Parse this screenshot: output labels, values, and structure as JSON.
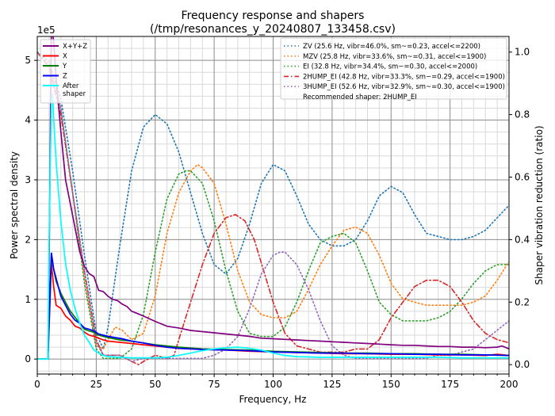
{
  "chart_data": {
    "type": "line",
    "title": "Frequency response and shapers",
    "subtitle": "(/tmp/resonances_y_20240807_133458.csv)",
    "xlabel": "Frequency, Hz",
    "ylabel": "Power spectral density",
    "y2label": "Shaper vibration reduction (ratio)",
    "y_offset_label": "1e5",
    "xlim": [
      0,
      200
    ],
    "ylim": [
      -0.25,
      5.4
    ],
    "y2lim": [
      -0.03,
      1.05
    ],
    "xticks": [
      "0",
      "25",
      "50",
      "75",
      "100",
      "125",
      "150",
      "175",
      "200"
    ],
    "yticks": [
      "0",
      "1",
      "2",
      "3",
      "4",
      "5"
    ],
    "y2ticks": [
      "0.0",
      "0.2",
      "0.4",
      "0.6",
      "0.8",
      "1.0"
    ],
    "grid": true,
    "legend_left": {
      "placement": "top-left",
      "entries": [
        "X+Y+Z",
        "X",
        "Y",
        "Z",
        "After\nshaper"
      ]
    },
    "legend_right": {
      "placement": "top-right",
      "entries": [
        "ZV (25.6 Hz, vibr=46.0%, sm~=0.23, accel<=2200)",
        "MZV (25.8 Hz, vibr=33.6%, sm~=0.31, accel<=1900)",
        "EI (32.8 Hz, vibr=34.4%, sm~=0.30, accel<=2000)",
        "2HUMP_EI (42.8 Hz, vibr=33.3%, sm~=0.29, accel<=1900)",
        "3HUMP_EI (52.6 Hz, vibr=32.9%, sm~=0.30, accel<=1900)"
      ],
      "note": "Recommended shaper: 2HUMP_EI"
    },
    "psd_series": [
      {
        "name": "X+Y+Z",
        "color": "#800080",
        "x": [
          0,
          4.5,
          5,
          6,
          7,
          8,
          10,
          12,
          14,
          16,
          18,
          20,
          22,
          24,
          26,
          28,
          30,
          32,
          34,
          36,
          38,
          40,
          42,
          45,
          50,
          55,
          60,
          65,
          70,
          75,
          80,
          85,
          90,
          95,
          100,
          105,
          110,
          115,
          120,
          125,
          130,
          135,
          140,
          145,
          150,
          155,
          160,
          165,
          170,
          175,
          180,
          185,
          190,
          195,
          197,
          200
        ],
        "y": [
          0,
          0,
          1.5,
          5.6,
          5.3,
          4.7,
          3.8,
          3.0,
          2.6,
          2.2,
          1.8,
          1.55,
          1.43,
          1.38,
          1.15,
          1.13,
          1.05,
          1.0,
          0.98,
          0.92,
          0.88,
          0.8,
          0.77,
          0.72,
          0.63,
          0.55,
          0.52,
          0.48,
          0.46,
          0.44,
          0.42,
          0.4,
          0.38,
          0.35,
          0.34,
          0.33,
          0.32,
          0.31,
          0.3,
          0.29,
          0.28,
          0.27,
          0.26,
          0.25,
          0.24,
          0.23,
          0.23,
          0.22,
          0.21,
          0.21,
          0.2,
          0.2,
          0.19,
          0.2,
          0.22,
          0.17
        ]
      },
      {
        "name": "X",
        "color": "#ff0000",
        "x": [
          0,
          4.5,
          5,
          6,
          7,
          8,
          10,
          12,
          14,
          16,
          18,
          20,
          22,
          24,
          26,
          28,
          30,
          35,
          40,
          45,
          50,
          60,
          70,
          80,
          90,
          100,
          110,
          120,
          130,
          140,
          150,
          160,
          170,
          180,
          190,
          195,
          200
        ],
        "y": [
          0,
          0,
          0.5,
          1.6,
          1.2,
          0.9,
          0.85,
          0.72,
          0.65,
          0.55,
          0.52,
          0.45,
          0.4,
          0.38,
          0.35,
          0.32,
          0.3,
          0.28,
          0.26,
          0.24,
          0.22,
          0.18,
          0.16,
          0.15,
          0.13,
          0.12,
          0.11,
          0.1,
          0.09,
          0.09,
          0.08,
          0.08,
          0.07,
          0.07,
          0.06,
          0.08,
          0.06
        ]
      },
      {
        "name": "Y",
        "color": "#008000",
        "x": [
          0,
          4.5,
          5,
          6,
          7,
          8,
          10,
          12,
          14,
          16,
          18,
          20,
          22,
          24,
          26,
          28,
          30,
          35,
          40,
          45,
          50,
          60,
          70,
          80,
          90,
          100,
          110,
          120,
          130,
          140,
          150,
          160,
          170,
          180,
          190,
          200
        ],
        "y": [
          0,
          0,
          0.6,
          1.7,
          1.5,
          1.3,
          1.1,
          0.95,
          0.8,
          0.7,
          0.6,
          0.5,
          0.47,
          0.45,
          0.4,
          0.38,
          0.36,
          0.32,
          0.3,
          0.27,
          0.24,
          0.2,
          0.17,
          0.16,
          0.15,
          0.13,
          0.12,
          0.11,
          0.1,
          0.1,
          0.09,
          0.09,
          0.08,
          0.08,
          0.07,
          0.06
        ]
      },
      {
        "name": "Z",
        "color": "#0000ff",
        "x": [
          0,
          4.5,
          5,
          6,
          7,
          8,
          10,
          12,
          14,
          16,
          18,
          20,
          22,
          24,
          26,
          28,
          30,
          33,
          36,
          40,
          45,
          50,
          55,
          60,
          70,
          80,
          90,
          100,
          110,
          120,
          130,
          140,
          150,
          160,
          170,
          180,
          190,
          200
        ],
        "y": [
          0,
          0,
          0.7,
          1.78,
          1.5,
          1.35,
          1.05,
          0.9,
          0.75,
          0.65,
          0.6,
          0.52,
          0.5,
          0.47,
          0.42,
          0.4,
          0.38,
          0.36,
          0.34,
          0.3,
          0.27,
          0.23,
          0.2,
          0.18,
          0.16,
          0.15,
          0.14,
          0.12,
          0.11,
          0.1,
          0.1,
          0.09,
          0.09,
          0.08,
          0.08,
          0.07,
          0.07,
          0.06
        ]
      },
      {
        "name": "After shaper",
        "color": "#00ffff",
        "x": [
          0,
          4.5,
          5,
          6,
          6.5,
          7,
          8,
          10,
          12,
          14,
          16,
          18,
          20,
          22,
          24,
          26,
          28,
          30,
          35,
          40,
          45,
          50,
          55,
          60,
          65,
          70,
          75,
          80,
          85,
          90,
          95,
          100,
          105,
          110,
          120,
          130,
          140,
          150,
          160,
          170,
          180,
          190,
          200
        ],
        "y": [
          0,
          0,
          2.0,
          4.3,
          4.45,
          4.0,
          3.3,
          2.3,
          1.6,
          1.15,
          0.85,
          0.6,
          0.4,
          0.28,
          0.15,
          0.1,
          0.06,
          0.04,
          0.03,
          0.02,
          0.02,
          0.02,
          0.03,
          0.06,
          0.1,
          0.14,
          0.17,
          0.19,
          0.2,
          0.18,
          0.15,
          0.1,
          0.06,
          0.04,
          0.03,
          0.03,
          0.03,
          0.03,
          0.03,
          0.03,
          0.02,
          0.02,
          0.02
        ]
      }
    ],
    "shaper_series": [
      {
        "name": "ZV",
        "color": "#1f77b4",
        "style": "dotted",
        "x": [
          0,
          5,
          10,
          15,
          20,
          25,
          28,
          30,
          35,
          40,
          45,
          50,
          55,
          60,
          65,
          70,
          75,
          80,
          85,
          90,
          95,
          100,
          105,
          110,
          115,
          120,
          125,
          130,
          135,
          140,
          145,
          150,
          155,
          160,
          165,
          170,
          175,
          180,
          185,
          190,
          195,
          200
        ],
        "y": [
          1.0,
          0.97,
          0.85,
          0.62,
          0.35,
          0.1,
          0.05,
          0.12,
          0.38,
          0.62,
          0.76,
          0.8,
          0.77,
          0.68,
          0.55,
          0.42,
          0.32,
          0.29,
          0.34,
          0.45,
          0.58,
          0.64,
          0.62,
          0.54,
          0.45,
          0.4,
          0.38,
          0.38,
          0.4,
          0.46,
          0.54,
          0.57,
          0.55,
          0.48,
          0.42,
          0.41,
          0.4,
          0.4,
          0.41,
          0.43,
          0.47,
          0.51
        ]
      },
      {
        "name": "MZV",
        "color": "#ff7f0e",
        "style": "dotted",
        "x": [
          0,
          5,
          10,
          15,
          20,
          25,
          28,
          30,
          33,
          36,
          40,
          45,
          50,
          55,
          60,
          65,
          68,
          70,
          75,
          80,
          85,
          90,
          95,
          100,
          105,
          110,
          115,
          120,
          125,
          130,
          135,
          140,
          145,
          150,
          155,
          160,
          165,
          170,
          175,
          180,
          185,
          190,
          195,
          200
        ],
        "y": [
          1.0,
          0.95,
          0.8,
          0.55,
          0.28,
          0.06,
          0.05,
          0.08,
          0.12,
          0.11,
          0.08,
          0.1,
          0.22,
          0.42,
          0.55,
          0.62,
          0.64,
          0.63,
          0.58,
          0.45,
          0.3,
          0.2,
          0.16,
          0.15,
          0.15,
          0.17,
          0.24,
          0.32,
          0.38,
          0.43,
          0.44,
          0.42,
          0.35,
          0.26,
          0.21,
          0.2,
          0.19,
          0.19,
          0.19,
          0.19,
          0.2,
          0.22,
          0.27,
          0.33
        ]
      },
      {
        "name": "EI",
        "color": "#2ca02c",
        "style": "dotted",
        "x": [
          0,
          5,
          10,
          15,
          20,
          25,
          28,
          30,
          35,
          40,
          45,
          50,
          55,
          60,
          63,
          65,
          70,
          75,
          80,
          85,
          90,
          95,
          100,
          105,
          110,
          115,
          120,
          125,
          130,
          135,
          140,
          145,
          150,
          155,
          160,
          165,
          170,
          175,
          180,
          185,
          190,
          195,
          200
        ],
        "y": [
          1.0,
          0.97,
          0.82,
          0.55,
          0.26,
          0.05,
          0.02,
          0.02,
          0.02,
          0.05,
          0.16,
          0.36,
          0.53,
          0.61,
          0.62,
          0.62,
          0.58,
          0.46,
          0.3,
          0.17,
          0.1,
          0.09,
          0.09,
          0.12,
          0.2,
          0.3,
          0.39,
          0.41,
          0.42,
          0.39,
          0.3,
          0.2,
          0.16,
          0.14,
          0.14,
          0.14,
          0.15,
          0.17,
          0.21,
          0.26,
          0.3,
          0.32,
          0.32
        ]
      },
      {
        "name": "2HUMP_EI",
        "color": "#d62728",
        "style": "dashdot",
        "x": [
          0,
          5,
          10,
          15,
          20,
          25,
          28,
          30,
          35,
          40,
          43,
          45,
          50,
          55,
          58,
          60,
          65,
          70,
          75,
          80,
          84,
          88,
          92,
          96,
          100,
          105,
          110,
          115,
          120,
          125,
          130,
          135,
          140,
          145,
          150,
          155,
          160,
          165,
          170,
          175,
          180,
          185,
          190,
          195,
          200
        ],
        "y": [
          1.0,
          0.95,
          0.8,
          0.55,
          0.3,
          0.08,
          0.03,
          0.03,
          0.03,
          0.01,
          0.0,
          0.01,
          0.03,
          0.02,
          0.03,
          0.08,
          0.2,
          0.32,
          0.42,
          0.47,
          0.48,
          0.46,
          0.4,
          0.3,
          0.2,
          0.1,
          0.06,
          0.05,
          0.04,
          0.04,
          0.04,
          0.05,
          0.05,
          0.08,
          0.15,
          0.2,
          0.25,
          0.27,
          0.27,
          0.25,
          0.2,
          0.14,
          0.1,
          0.08,
          0.07
        ]
      },
      {
        "name": "3HUMP_EI",
        "color": "#9467bd",
        "style": "dotted",
        "x": [
          0,
          5,
          10,
          15,
          20,
          25,
          28,
          30,
          35,
          40,
          45,
          50,
          55,
          60,
          65,
          70,
          75,
          80,
          85,
          90,
          95,
          100,
          103,
          105,
          110,
          115,
          120,
          125,
          130,
          135,
          140,
          145,
          150,
          155,
          160,
          165,
          170,
          175,
          180,
          185,
          190,
          195,
          200
        ],
        "y": [
          1.0,
          0.96,
          0.82,
          0.55,
          0.3,
          0.07,
          0.03,
          0.03,
          0.03,
          0.01,
          0.02,
          0.02,
          0.02,
          0.02,
          0.02,
          0.02,
          0.03,
          0.05,
          0.09,
          0.18,
          0.29,
          0.35,
          0.36,
          0.36,
          0.32,
          0.24,
          0.14,
          0.06,
          0.03,
          0.02,
          0.02,
          0.02,
          0.02,
          0.02,
          0.02,
          0.02,
          0.03,
          0.03,
          0.04,
          0.05,
          0.08,
          0.11,
          0.14
        ]
      }
    ]
  }
}
